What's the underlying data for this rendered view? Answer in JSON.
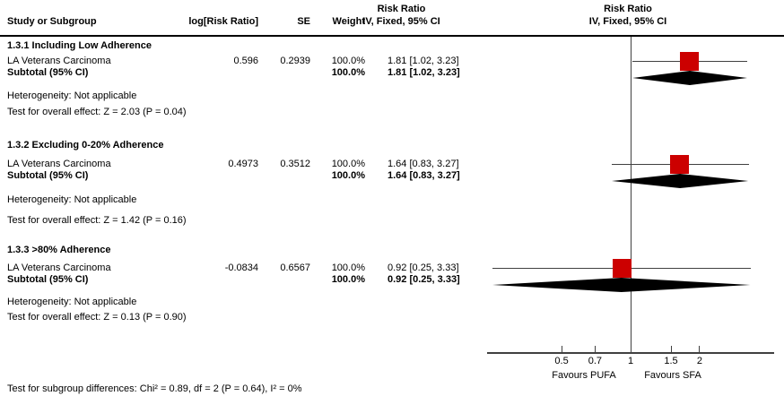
{
  "header": {
    "col_study": "Study or Subgroup",
    "col_logrr": "log[Risk Ratio]",
    "col_se": "SE",
    "col_weight": "Weight",
    "col_ci_line1": "Risk Ratio",
    "col_ci_line2": "IV, Fixed, 95% CI",
    "plot_line1": "Risk Ratio",
    "plot_line2": "IV, Fixed, 95% CI"
  },
  "chart_data": {
    "type": "forest",
    "effect_measure": "Risk Ratio",
    "model": "IV, Fixed, 95% CI",
    "x_scale": "log",
    "x_ticks": [
      "0.5",
      "0.7",
      "1",
      "1.5",
      "2"
    ],
    "axis_extent_approx": [
      0.24,
      4.2
    ],
    "favours_left": "Favours PUFA",
    "favours_right": "Favours SFA",
    "marker_color": "#CC0000",
    "subgroups": [
      {
        "label": "1.3.1 Including Low Adherence",
        "study": {
          "name": "LA Veterans Carcinoma",
          "log_rr": "0.596",
          "se": "0.2939",
          "weight": "100.0%",
          "ci_text": "1.81 [1.02, 3.23]"
        },
        "subtotal": {
          "label": "Subtotal (95% CI)",
          "weight": "100.0%",
          "ci_text": "1.81 [1.02, 3.23]"
        },
        "heterogeneity": "Heterogeneity: Not applicable",
        "overall_effect": "Test for overall effect: Z = 2.03 (P = 0.04)",
        "est": 1.81,
        "lo": 1.02,
        "hi": 3.23,
        "weight_pct": 100.0
      },
      {
        "label": "1.3.2 Excluding 0-20% Adherence",
        "study": {
          "name": "LA Veterans Carcinoma",
          "log_rr": "0.4973",
          "se": "0.3512",
          "weight": "100.0%",
          "ci_text": "1.64 [0.83, 3.27]"
        },
        "subtotal": {
          "label": "Subtotal (95% CI)",
          "weight": "100.0%",
          "ci_text": "1.64 [0.83, 3.27]"
        },
        "heterogeneity": "Heterogeneity: Not applicable",
        "overall_effect": "Test for overall effect: Z = 1.42 (P = 0.16)",
        "est": 1.64,
        "lo": 0.83,
        "hi": 3.27,
        "weight_pct": 100.0
      },
      {
        "label": "1.3.3 >80% Adherence",
        "study": {
          "name": "LA Veterans Carcinoma",
          "log_rr": "-0.0834",
          "se": "0.6567",
          "weight": "100.0%",
          "ci_text": "0.92 [0.25, 3.33]"
        },
        "subtotal": {
          "label": "Subtotal (95% CI)",
          "weight": "100.0%",
          "ci_text": "0.92 [0.25, 3.33]"
        },
        "heterogeneity": "Heterogeneity: Not applicable",
        "overall_effect": "Test for overall effect: Z = 0.13 (P = 0.90)",
        "est": 0.92,
        "lo": 0.25,
        "hi": 3.33,
        "weight_pct": 100.0
      }
    ],
    "footer": "Test for subgroup differences: Chi² = 0.89, df = 2 (P = 0.64), I² = 0%"
  }
}
